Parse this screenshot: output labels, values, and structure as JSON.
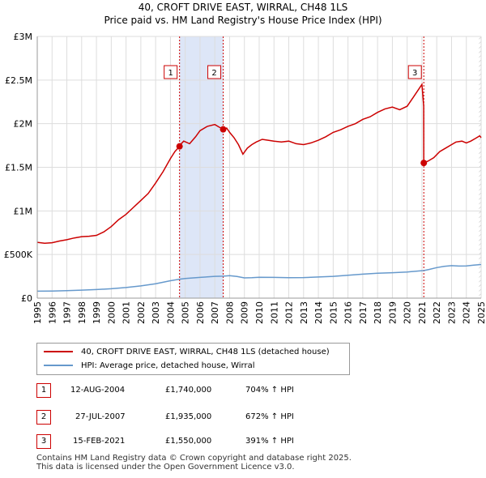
{
  "title_line1": "40, CROFT DRIVE EAST, WIRRAL, CH48 1LS",
  "title_line2": "Price paid vs. HM Land Registry's House Price Index (HPI)",
  "colors": {
    "property": "#cc0000",
    "hpi": "#6699cc",
    "shade": "#dde6f7",
    "grid": "#dddddd"
  },
  "chart_data": {
    "type": "line",
    "title": "Price paid vs. HM Land Registry's House Price Index (HPI)",
    "xlabel": "",
    "ylabel": "",
    "xlim": [
      1995,
      2025
    ],
    "ylim": [
      0,
      3000000
    ],
    "y_ticks": [
      {
        "value": 0,
        "label": "£0"
      },
      {
        "value": 500000,
        "label": "£500K"
      },
      {
        "value": 1000000,
        "label": "£1M"
      },
      {
        "value": 1500000,
        "label": "£1.5M"
      },
      {
        "value": 2000000,
        "label": "£2M"
      },
      {
        "value": 2500000,
        "label": "£2.5M"
      },
      {
        "value": 3000000,
        "label": "£3M"
      }
    ],
    "x_ticks": [
      "1995",
      "1996",
      "1997",
      "1998",
      "1999",
      "2000",
      "2001",
      "2002",
      "2003",
      "2004",
      "2005",
      "2006",
      "2007",
      "2008",
      "2009",
      "2010",
      "2011",
      "2012",
      "2013",
      "2014",
      "2015",
      "2016",
      "2017",
      "2018",
      "2019",
      "2020",
      "2021",
      "2022",
      "2023",
      "2024",
      "2025"
    ],
    "grid": true,
    "series": [
      {
        "name": "40, CROFT DRIVE EAST, WIRRAL, CH48 1LS (detached house)",
        "x": [
          1995.0,
          1995.5,
          1996.0,
          1996.5,
          1997.0,
          1997.5,
          1998.0,
          1998.5,
          1999.0,
          1999.5,
          2000.0,
          2000.5,
          2001.0,
          2001.5,
          2002.0,
          2002.5,
          2003.0,
          2003.5,
          2004.0,
          2004.3,
          2004.617,
          2004.62,
          2004.9,
          2005.3,
          2005.7,
          2006.0,
          2006.5,
          2007.0,
          2007.3,
          2007.5,
          2007.567,
          2007.8,
          2008.0,
          2008.3,
          2008.6,
          2008.9,
          2009.2,
          2009.5,
          2009.8,
          2010.2,
          2010.6,
          2011.0,
          2011.5,
          2012.0,
          2012.5,
          2013.0,
          2013.5,
          2014.0,
          2014.5,
          2015.0,
          2015.5,
          2016.0,
          2016.5,
          2017.0,
          2017.5,
          2018.0,
          2018.5,
          2019.0,
          2019.5,
          2020.0,
          2020.4,
          2020.8,
          2021.0,
          2021.12,
          2021.125,
          2021.4,
          2021.8,
          2022.2,
          2022.6,
          2023.0,
          2023.3,
          2023.7,
          2024.0,
          2024.3,
          2024.6,
          2024.9,
          2025.0
        ],
        "values": [
          640000,
          630000,
          635000,
          655000,
          670000,
          690000,
          705000,
          710000,
          720000,
          760000,
          820000,
          900000,
          960000,
          1040000,
          1120000,
          1200000,
          1320000,
          1450000,
          1600000,
          1680000,
          1740000,
          1750000,
          1800000,
          1770000,
          1850000,
          1920000,
          1970000,
          1990000,
          1960000,
          1945000,
          1935000,
          1950000,
          1900000,
          1840000,
          1760000,
          1650000,
          1720000,
          1760000,
          1790000,
          1820000,
          1810000,
          1800000,
          1790000,
          1800000,
          1770000,
          1760000,
          1780000,
          1810000,
          1850000,
          1900000,
          1930000,
          1970000,
          2000000,
          2050000,
          2080000,
          2130000,
          2170000,
          2190000,
          2160000,
          2200000,
          2300000,
          2400000,
          2450000,
          2200000,
          1550000,
          1570000,
          1610000,
          1680000,
          1720000,
          1760000,
          1790000,
          1800000,
          1780000,
          1800000,
          1830000,
          1860000,
          1840000
        ]
      },
      {
        "name": "HPI: Average price, detached house, Wirral",
        "x": [
          1995.0,
          1996.0,
          1997.0,
          1998.0,
          1999.0,
          2000.0,
          2001.0,
          2002.0,
          2003.0,
          2004.0,
          2004.617,
          2005.0,
          2006.0,
          2007.0,
          2007.567,
          2008.0,
          2008.5,
          2009.0,
          2009.5,
          2010.0,
          2011.0,
          2012.0,
          2013.0,
          2014.0,
          2015.0,
          2016.0,
          2017.0,
          2018.0,
          2019.0,
          2020.0,
          2021.0,
          2021.125,
          2021.5,
          2022.0,
          2022.5,
          2023.0,
          2023.5,
          2024.0,
          2024.5,
          2025.0
        ],
        "values": [
          80000,
          82000,
          86000,
          92000,
          98000,
          108000,
          122000,
          140000,
          165000,
          200000,
          217000,
          225000,
          238000,
          250000,
          252000,
          258000,
          248000,
          232000,
          235000,
          240000,
          238000,
          235000,
          236000,
          242000,
          250000,
          262000,
          275000,
          285000,
          292000,
          300000,
          315000,
          316000,
          330000,
          350000,
          365000,
          372000,
          368000,
          370000,
          378000,
          385000
        ]
      }
    ],
    "sales": [
      {
        "label": "1",
        "x": 2004.617,
        "value": 1740000,
        "date": "12-AUG-2004",
        "price": "£1,740,000",
        "hpi_change": "704% ↑ HPI"
      },
      {
        "label": "2",
        "x": 2007.567,
        "value": 1935000,
        "date": "27-JUL-2007",
        "price": "£1,935,000",
        "hpi_change": "672% ↑ HPI"
      },
      {
        "label": "3",
        "x": 2021.125,
        "value": 1550000,
        "date": "15-FEB-2021",
        "price": "£1,550,000",
        "hpi_change": "391% ↑ HPI"
      }
    ]
  },
  "legend": {
    "property_label": "40, CROFT DRIVE EAST, WIRRAL, CH48 1LS (detached house)",
    "hpi_label": "HPI: Average price, detached house, Wirral"
  },
  "footer_line1": "Contains HM Land Registry data © Crown copyright and database right 2025.",
  "footer_line2": "This data is licensed under the Open Government Licence v3.0."
}
